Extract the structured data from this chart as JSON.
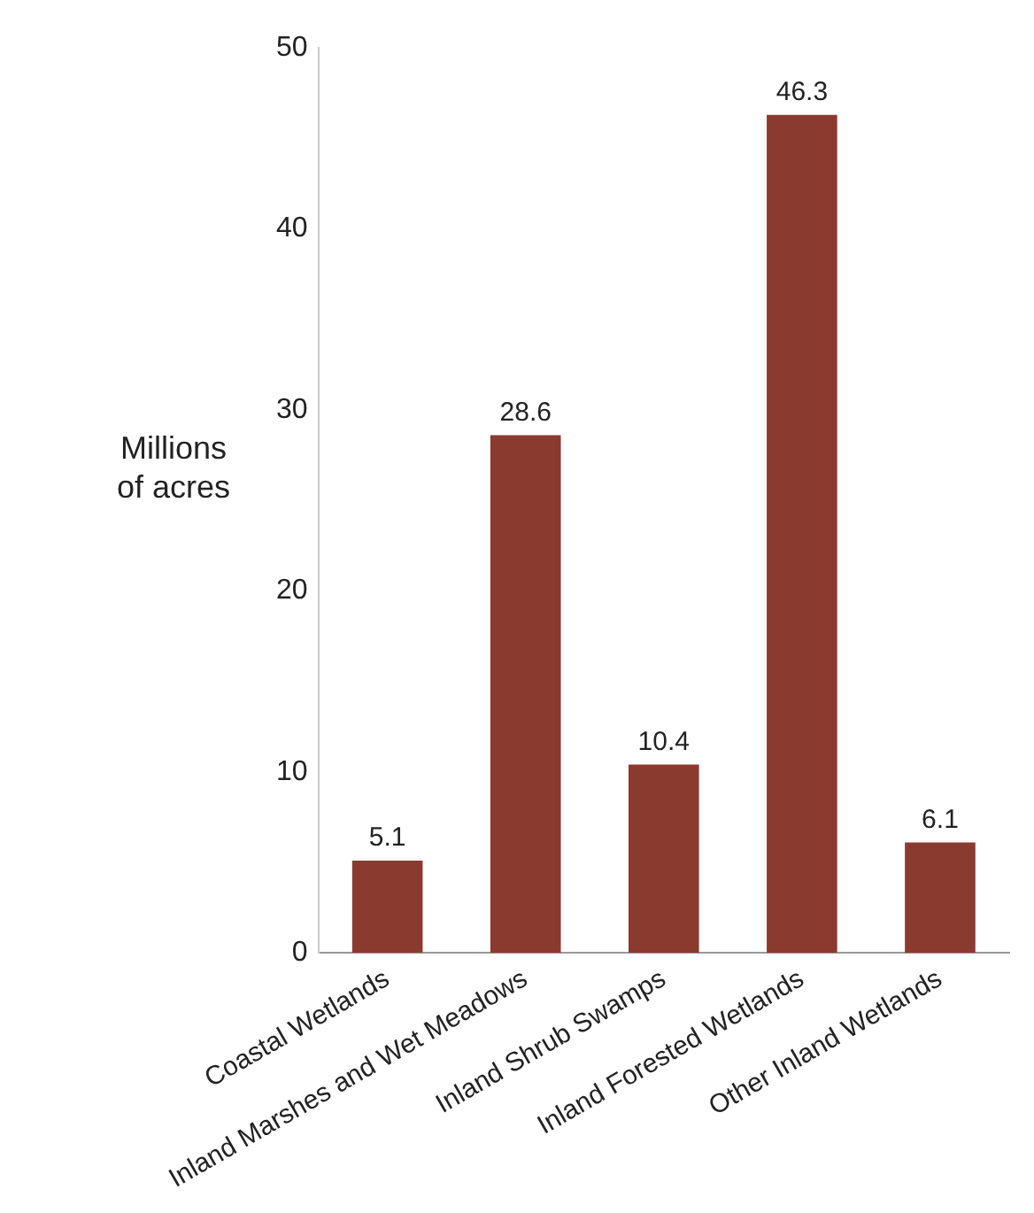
{
  "chart_data": {
    "type": "bar",
    "ylabel": "Millions\nof acres",
    "categories": [
      "Coastal Wetlands",
      "Inland Marshes and Wet Meadows",
      "Inland Shrub Swamps",
      "Inland Forested Wetlands",
      "Other Inland Wetlands"
    ],
    "values": [
      5.1,
      28.6,
      10.4,
      46.3,
      6.1
    ],
    "color": "#8b3a30",
    "ylim": [
      0,
      50
    ],
    "yticks": [
      0,
      10,
      20,
      30,
      40,
      50
    ],
    "data_labels": true,
    "grid": false,
    "legend": false
  }
}
